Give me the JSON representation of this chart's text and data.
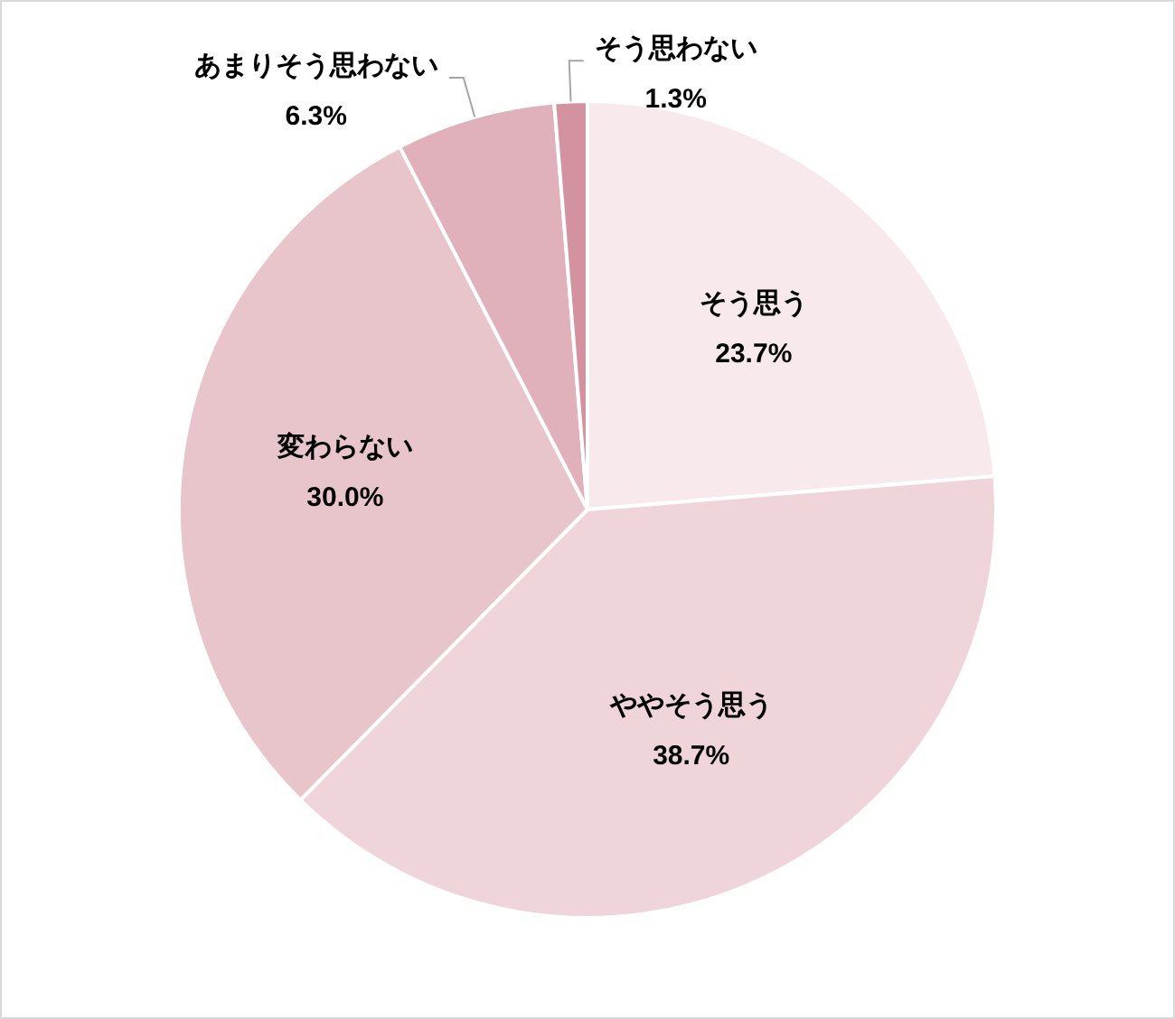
{
  "chart_data": {
    "type": "pie",
    "categories": [
      "そう思う",
      "ややそう思う",
      "変わらない",
      "あまりそう思わない",
      "そう思わない"
    ],
    "values": [
      23.7,
      38.7,
      30.0,
      6.3,
      1.3
    ],
    "value_labels": [
      "23.7%",
      "38.7%",
      "30.0%",
      "6.3%",
      "1.3%"
    ],
    "colors": [
      "#f8e9ec",
      "#efd5da",
      "#e8c4cb",
      "#e0b1bb",
      "#d3929f"
    ],
    "legend": false
  }
}
